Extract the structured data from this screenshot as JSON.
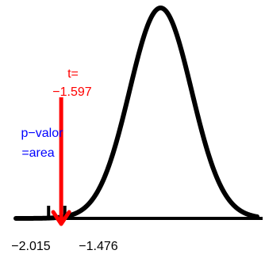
{
  "chart_data": {
    "type": "area",
    "distribution": "t",
    "x_range": [
      -3.1,
      4.9
    ],
    "curve": {
      "mean": 1.7,
      "sd": 1.03,
      "color": "#000000"
    },
    "t_stat": {
      "line1": "t=",
      "line2": "−1.597",
      "value": -1.597,
      "color": "#ff0000"
    },
    "p_value_label": {
      "line1": "p−valor",
      "line2": "=area",
      "color": "#0000ff"
    },
    "shaded_tail": {
      "from": -3.1,
      "to": -1.597,
      "color": "#0000ff"
    },
    "critical_ticks": [
      {
        "label": "−2.015",
        "value": -2.015
      },
      {
        "label": "−1.476",
        "value": -1.476
      }
    ]
  }
}
